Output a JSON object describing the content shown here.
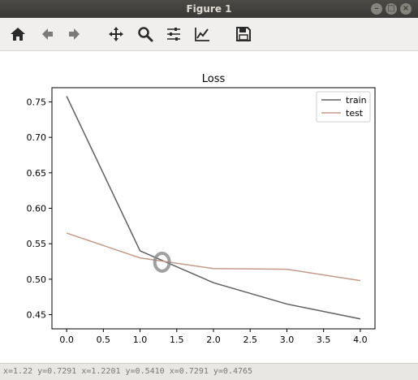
{
  "window": {
    "title": "Figure 1"
  },
  "toolbar": {
    "buttons": [
      {
        "name": "home-icon"
      },
      {
        "name": "back-arrow-icon"
      },
      {
        "name": "forward-arrow-icon"
      },
      {
        "name": "pan-icon"
      },
      {
        "name": "zoom-icon"
      },
      {
        "name": "configure-subplots-icon"
      },
      {
        "name": "edit-axis-icon"
      },
      {
        "name": "save-icon"
      }
    ]
  },
  "chart_data": {
    "type": "line",
    "title": "Loss",
    "xlabel": "",
    "ylabel": "",
    "x": [
      0,
      1,
      2,
      3,
      4
    ],
    "xlim": [
      -0.2,
      4.2
    ],
    "ylim": [
      0.43,
      0.77
    ],
    "xticks": [
      "0.0",
      "0.5",
      "1.0",
      "1.5",
      "2.0",
      "2.5",
      "3.0",
      "3.5",
      "4.0"
    ],
    "yticks": [
      "0.45",
      "0.50",
      "0.55",
      "0.60",
      "0.65",
      "0.70",
      "0.75"
    ],
    "series": [
      {
        "name": "train",
        "color": "#5f5f5f",
        "values": [
          0.758,
          0.54,
          0.495,
          0.465,
          0.444
        ]
      },
      {
        "name": "test",
        "color": "#c49a88",
        "values": [
          0.565,
          0.53,
          0.515,
          0.514,
          0.498
        ]
      }
    ],
    "legend": "top-right",
    "grid": false,
    "annotation": {
      "shape": "ellipse",
      "x": 1.3,
      "y": 0.524,
      "color": "#888888"
    }
  },
  "statusbar": {
    "text": "x=1.22  y=0.7291  x=1.2201  y=0.5410  x=0.7291  y=0.4765"
  }
}
